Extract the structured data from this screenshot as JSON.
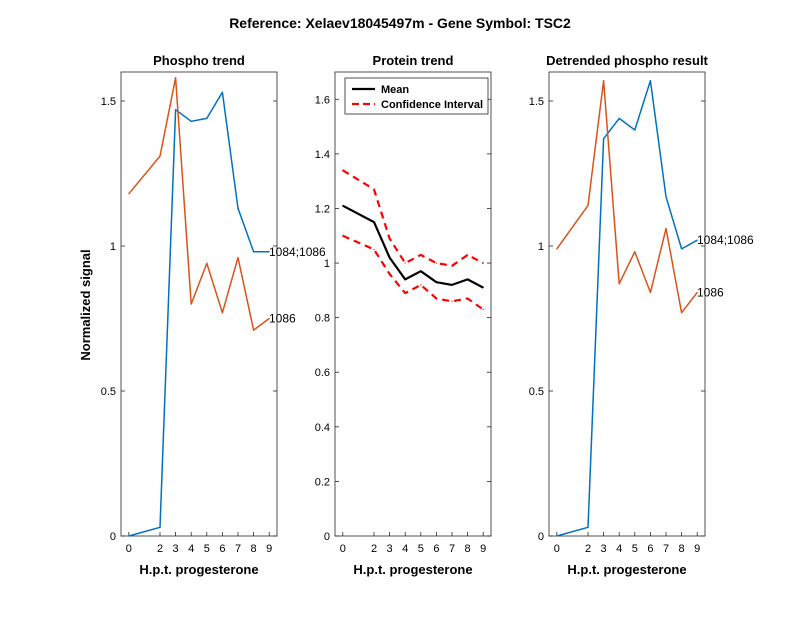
{
  "figure": {
    "title": "Reference:  Xelaev18045497m - Gene Symbol:  TSC2",
    "ylabel": "Normalized signal"
  },
  "colors": {
    "blue": "#0072BD",
    "orange": "#D95319",
    "mean": "#000000",
    "ci": "#FF0000"
  },
  "chart_data": [
    {
      "type": "line",
      "title": "Phospho trend",
      "xlabel": "H.p.t. progesterone",
      "categories": [
        "0",
        "2",
        "3",
        "4",
        "5",
        "6",
        "7",
        "8",
        "9"
      ],
      "xticks": [
        "0",
        "2",
        "3",
        "4",
        "5",
        "6",
        "7",
        "8",
        "9"
      ],
      "ylim": [
        0,
        1.6
      ],
      "yticks": [
        0,
        0.5,
        1,
        1.5
      ],
      "yticklabels": [
        "0",
        "0.5",
        "1",
        "1.5"
      ],
      "series": [
        {
          "name": "1084;1086",
          "color": "blue",
          "values": [
            0.0,
            0.03,
            1.47,
            1.43,
            1.44,
            1.53,
            1.13,
            0.98,
            0.98
          ]
        },
        {
          "name": "1086",
          "color": "orange",
          "values": [
            1.18,
            1.31,
            1.58,
            0.8,
            0.94,
            0.77,
            0.96,
            0.71,
            0.75
          ]
        }
      ]
    },
    {
      "type": "line",
      "title": "Protein trend",
      "xlabel": "H.p.t. progesterone",
      "categories": [
        "0",
        "2",
        "3",
        "4",
        "5",
        "6",
        "7",
        "8",
        "9"
      ],
      "xticks": [
        "0",
        "2",
        "3",
        "4",
        "5",
        "6",
        "7",
        "8",
        "9"
      ],
      "ylim": [
        0,
        1.7
      ],
      "yticks": [
        0,
        0.2,
        0.4,
        0.6,
        0.8,
        1,
        1.2,
        1.4,
        1.6
      ],
      "yticklabels": [
        "0",
        "0.2",
        "0.4",
        "0.6",
        "0.8",
        "1",
        "1.2",
        "1.4",
        "1.6"
      ],
      "legend": {
        "position": "top-left",
        "entries": [
          "Mean",
          "Confidence Interval"
        ]
      },
      "series": [
        {
          "name": "Mean",
          "color": "mean",
          "style": "solid",
          "values": [
            1.21,
            1.15,
            1.02,
            0.94,
            0.97,
            0.93,
            0.92,
            0.94,
            0.91
          ]
        },
        {
          "name": "Confidence Interval",
          "color": "ci",
          "style": "dashed",
          "values": [
            1.34,
            1.27,
            1.09,
            1.0,
            1.03,
            1.0,
            0.99,
            1.03,
            1.0
          ]
        },
        {
          "name": "Confidence Interval (lower)",
          "color": "ci",
          "style": "dashed",
          "values": [
            1.1,
            1.05,
            0.96,
            0.89,
            0.92,
            0.87,
            0.86,
            0.87,
            0.83
          ]
        }
      ]
    },
    {
      "type": "line",
      "title": "Detrended phospho result",
      "xlabel": "H.p.t. progesterone",
      "categories": [
        "0",
        "2",
        "3",
        "4",
        "5",
        "6",
        "7",
        "8",
        "9"
      ],
      "xticks": [
        "0",
        "2",
        "3",
        "4",
        "5",
        "6",
        "7",
        "8",
        "9"
      ],
      "ylim": [
        0,
        1.6
      ],
      "yticks": [
        0,
        0.5,
        1,
        1.5
      ],
      "yticklabels": [
        "0",
        "0.5",
        "1",
        "1.5"
      ],
      "series": [
        {
          "name": "1084;1086",
          "color": "blue",
          "values": [
            0.0,
            0.03,
            1.37,
            1.44,
            1.4,
            1.57,
            1.17,
            0.99,
            1.02
          ]
        },
        {
          "name": "1086",
          "color": "orange",
          "values": [
            0.99,
            1.14,
            1.57,
            0.87,
            0.98,
            0.84,
            1.06,
            0.77,
            0.84
          ]
        }
      ]
    }
  ]
}
